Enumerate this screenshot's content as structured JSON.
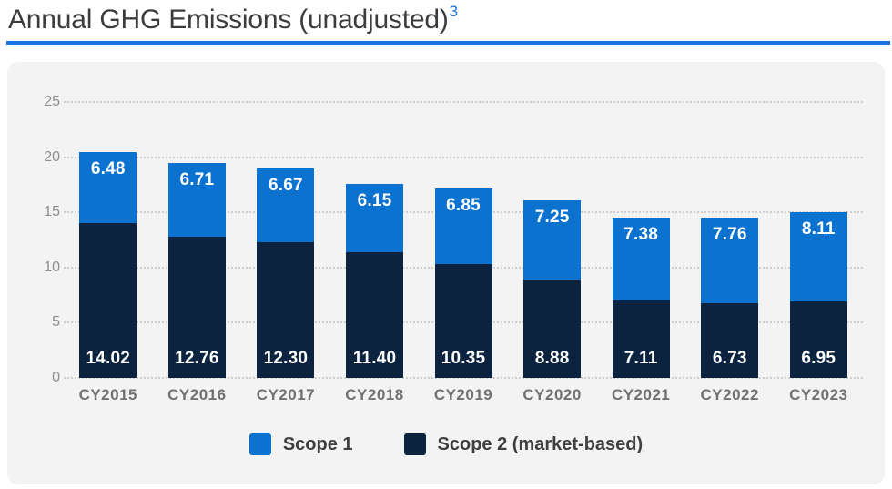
{
  "page": {
    "title": "Annual GHG Emissions (unadjusted)",
    "title_superscript": "3",
    "rule_color": "#1a73e0",
    "panel_background": "#f3f3f3"
  },
  "chart_data": {
    "type": "bar",
    "stacked": true,
    "title": "Annual GHG Emissions (unadjusted)",
    "categories": [
      "CY2015",
      "CY2016",
      "CY2017",
      "CY2018",
      "CY2019",
      "CY2020",
      "CY2021",
      "CY2022",
      "CY2023"
    ],
    "series": [
      {
        "name": "Scope 1",
        "color": "#0b73cf",
        "stack_position": "top",
        "values": [
          6.48,
          6.71,
          6.67,
          6.15,
          6.85,
          7.25,
          7.38,
          7.76,
          8.11
        ]
      },
      {
        "name": "Scope 2 (market-based)",
        "color": "#0c2340",
        "stack_position": "bottom",
        "values": [
          14.02,
          12.76,
          12.3,
          11.4,
          10.35,
          8.88,
          7.11,
          6.73,
          6.95
        ]
      }
    ],
    "y_ticks": [
      0,
      5,
      10,
      15,
      20,
      25
    ],
    "ylim": [
      0,
      25
    ],
    "grid": "horizontal-dotted",
    "value_label_format": "2-decimals",
    "value_label_color": "#ffffff",
    "legend_position": "bottom"
  }
}
